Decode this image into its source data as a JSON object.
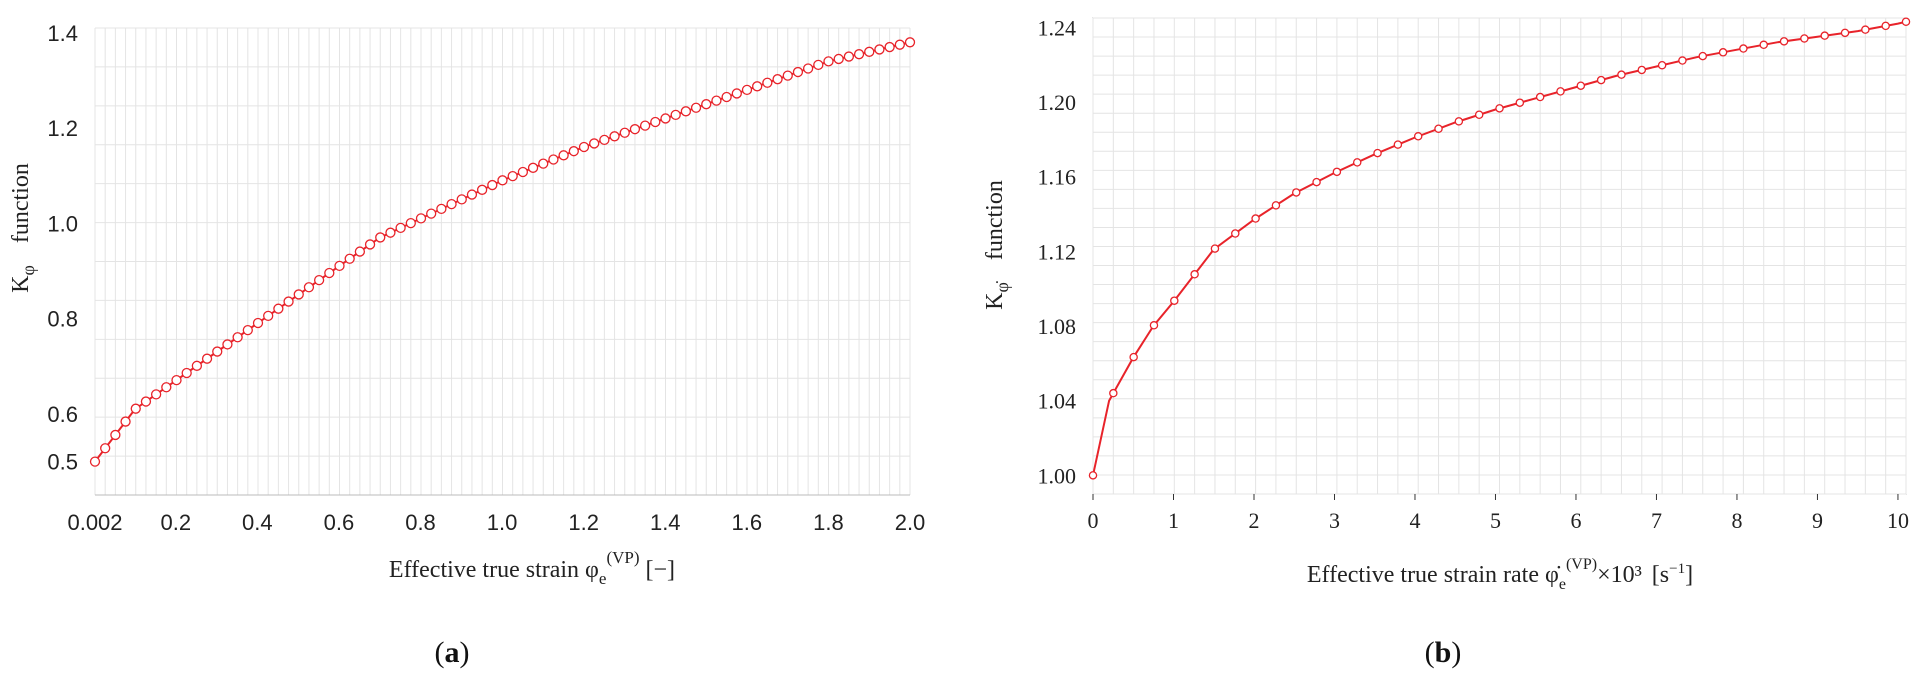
{
  "chart_data": [
    {
      "type": "line",
      "panel": "(a)",
      "caption": {
        "open": "(",
        "letter": "a",
        "close": ")"
      },
      "ylabel": {
        "symbol": "K",
        "sub": "φ",
        "word": "function"
      },
      "xlabel": {
        "text": "Effective true strain φ",
        "sub": "e",
        "sup": "(VP)",
        "unit": "[−]"
      },
      "xlim": [
        0.002,
        2.0
      ],
      "ylim": [
        0.43,
        1.41
      ],
      "xticks": [
        "0.002",
        "0.2",
        "0.4",
        "0.6",
        "0.8",
        "1.0",
        "1.2",
        "1.4",
        "1.6",
        "1.8",
        "2.0"
      ],
      "xtick_values": [
        0.002,
        0.2,
        0.4,
        0.6,
        0.8,
        1.0,
        1.2,
        1.4,
        1.6,
        1.8,
        2.0
      ],
      "yticks": [
        "0.5",
        "0.6",
        "0.8",
        "1.0",
        "1.2",
        "1.4"
      ],
      "ytick_values": [
        0.5,
        0.6,
        0.8,
        1.0,
        1.2,
        1.4
      ],
      "grid": true,
      "color": "#e8232a",
      "x": [
        0.002,
        0.1,
        0.2,
        0.3,
        0.4,
        0.5,
        0.6,
        0.7,
        0.8,
        0.9,
        1.0,
        1.1,
        1.2,
        1.3,
        1.4,
        1.5,
        1.6,
        1.7,
        1.8,
        1.9,
        2.0
      ],
      "y": [
        0.5,
        0.61,
        0.67,
        0.73,
        0.79,
        0.85,
        0.91,
        0.97,
        1.01,
        1.05,
        1.09,
        1.125,
        1.16,
        1.19,
        1.22,
        1.25,
        1.28,
        1.31,
        1.34,
        1.36,
        1.38
      ]
    },
    {
      "type": "line",
      "panel": "(b)",
      "caption": {
        "open": "(",
        "letter": "b",
        "close": ")"
      },
      "ylabel": {
        "symbol": "K",
        "sub": "φ̇",
        "word": "function"
      },
      "xlabel": {
        "text": "Effective true strain rate φ̇",
        "sub": "e",
        "sup": "(VP)",
        "mult": "×10³",
        "unit_open": "[s",
        "unit_sup": "−1",
        "unit_close": "]"
      },
      "xlim": [
        0,
        10.1
      ],
      "ylim": [
        0.99,
        1.245
      ],
      "xticks": [
        "0",
        "1",
        "2",
        "3",
        "4",
        "5",
        "6",
        "7",
        "8",
        "9",
        "10"
      ],
      "xtick_values": [
        0,
        1,
        2,
        3,
        4,
        5,
        6,
        7,
        8,
        9,
        10
      ],
      "yticks": [
        "1.00",
        "1.04",
        "1.08",
        "1.12",
        "1.16",
        "1.20",
        "1.24"
      ],
      "ytick_values": [
        1.0,
        1.04,
        1.08,
        1.12,
        1.16,
        1.2,
        1.24
      ],
      "grid": true,
      "color": "#e8232a",
      "x": [
        0,
        0.2,
        0.5,
        0.75,
        1,
        1.5,
        2,
        2.5,
        3,
        3.5,
        4,
        4.5,
        5,
        5.5,
        6,
        6.5,
        7,
        7.5,
        8,
        8.5,
        9,
        9.5,
        10,
        10.1
      ],
      "y": [
        1.0,
        1.04,
        1.063,
        1.08,
        1.093,
        1.121,
        1.137,
        1.151,
        1.162,
        1.172,
        1.181,
        1.189,
        1.196,
        1.202,
        1.208,
        1.214,
        1.219,
        1.224,
        1.228,
        1.232,
        1.235,
        1.238,
        1.242,
        1.243
      ]
    }
  ]
}
